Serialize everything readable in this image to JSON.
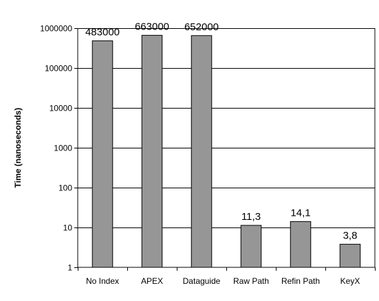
{
  "chart_data": {
    "type": "bar",
    "scale": "log",
    "categories": [
      "No Index",
      "APEX",
      "Dataguide",
      "Raw Path",
      "Refin Path",
      "KeyX"
    ],
    "values": [
      483000,
      663000,
      652000,
      11.3,
      14.1,
      3.8
    ],
    "data_labels": [
      "483000",
      "663000",
      "652000",
      "11,3",
      "14,1",
      "3,8"
    ],
    "ylabel": "Time (nanoseconds)",
    "ylim": [
      1,
      1000000
    ],
    "yticks": [
      1,
      10,
      100,
      1000,
      10000,
      100000,
      1000000
    ],
    "ytick_labels": [
      "1",
      "10",
      "100",
      "1000",
      "10000",
      "100000",
      "1000000"
    ],
    "grid": true,
    "legend": "none",
    "colors": {
      "bar_fill": "#969696",
      "bar_stroke": "#000000",
      "grid": "#000000",
      "background": "#ffffff"
    }
  }
}
